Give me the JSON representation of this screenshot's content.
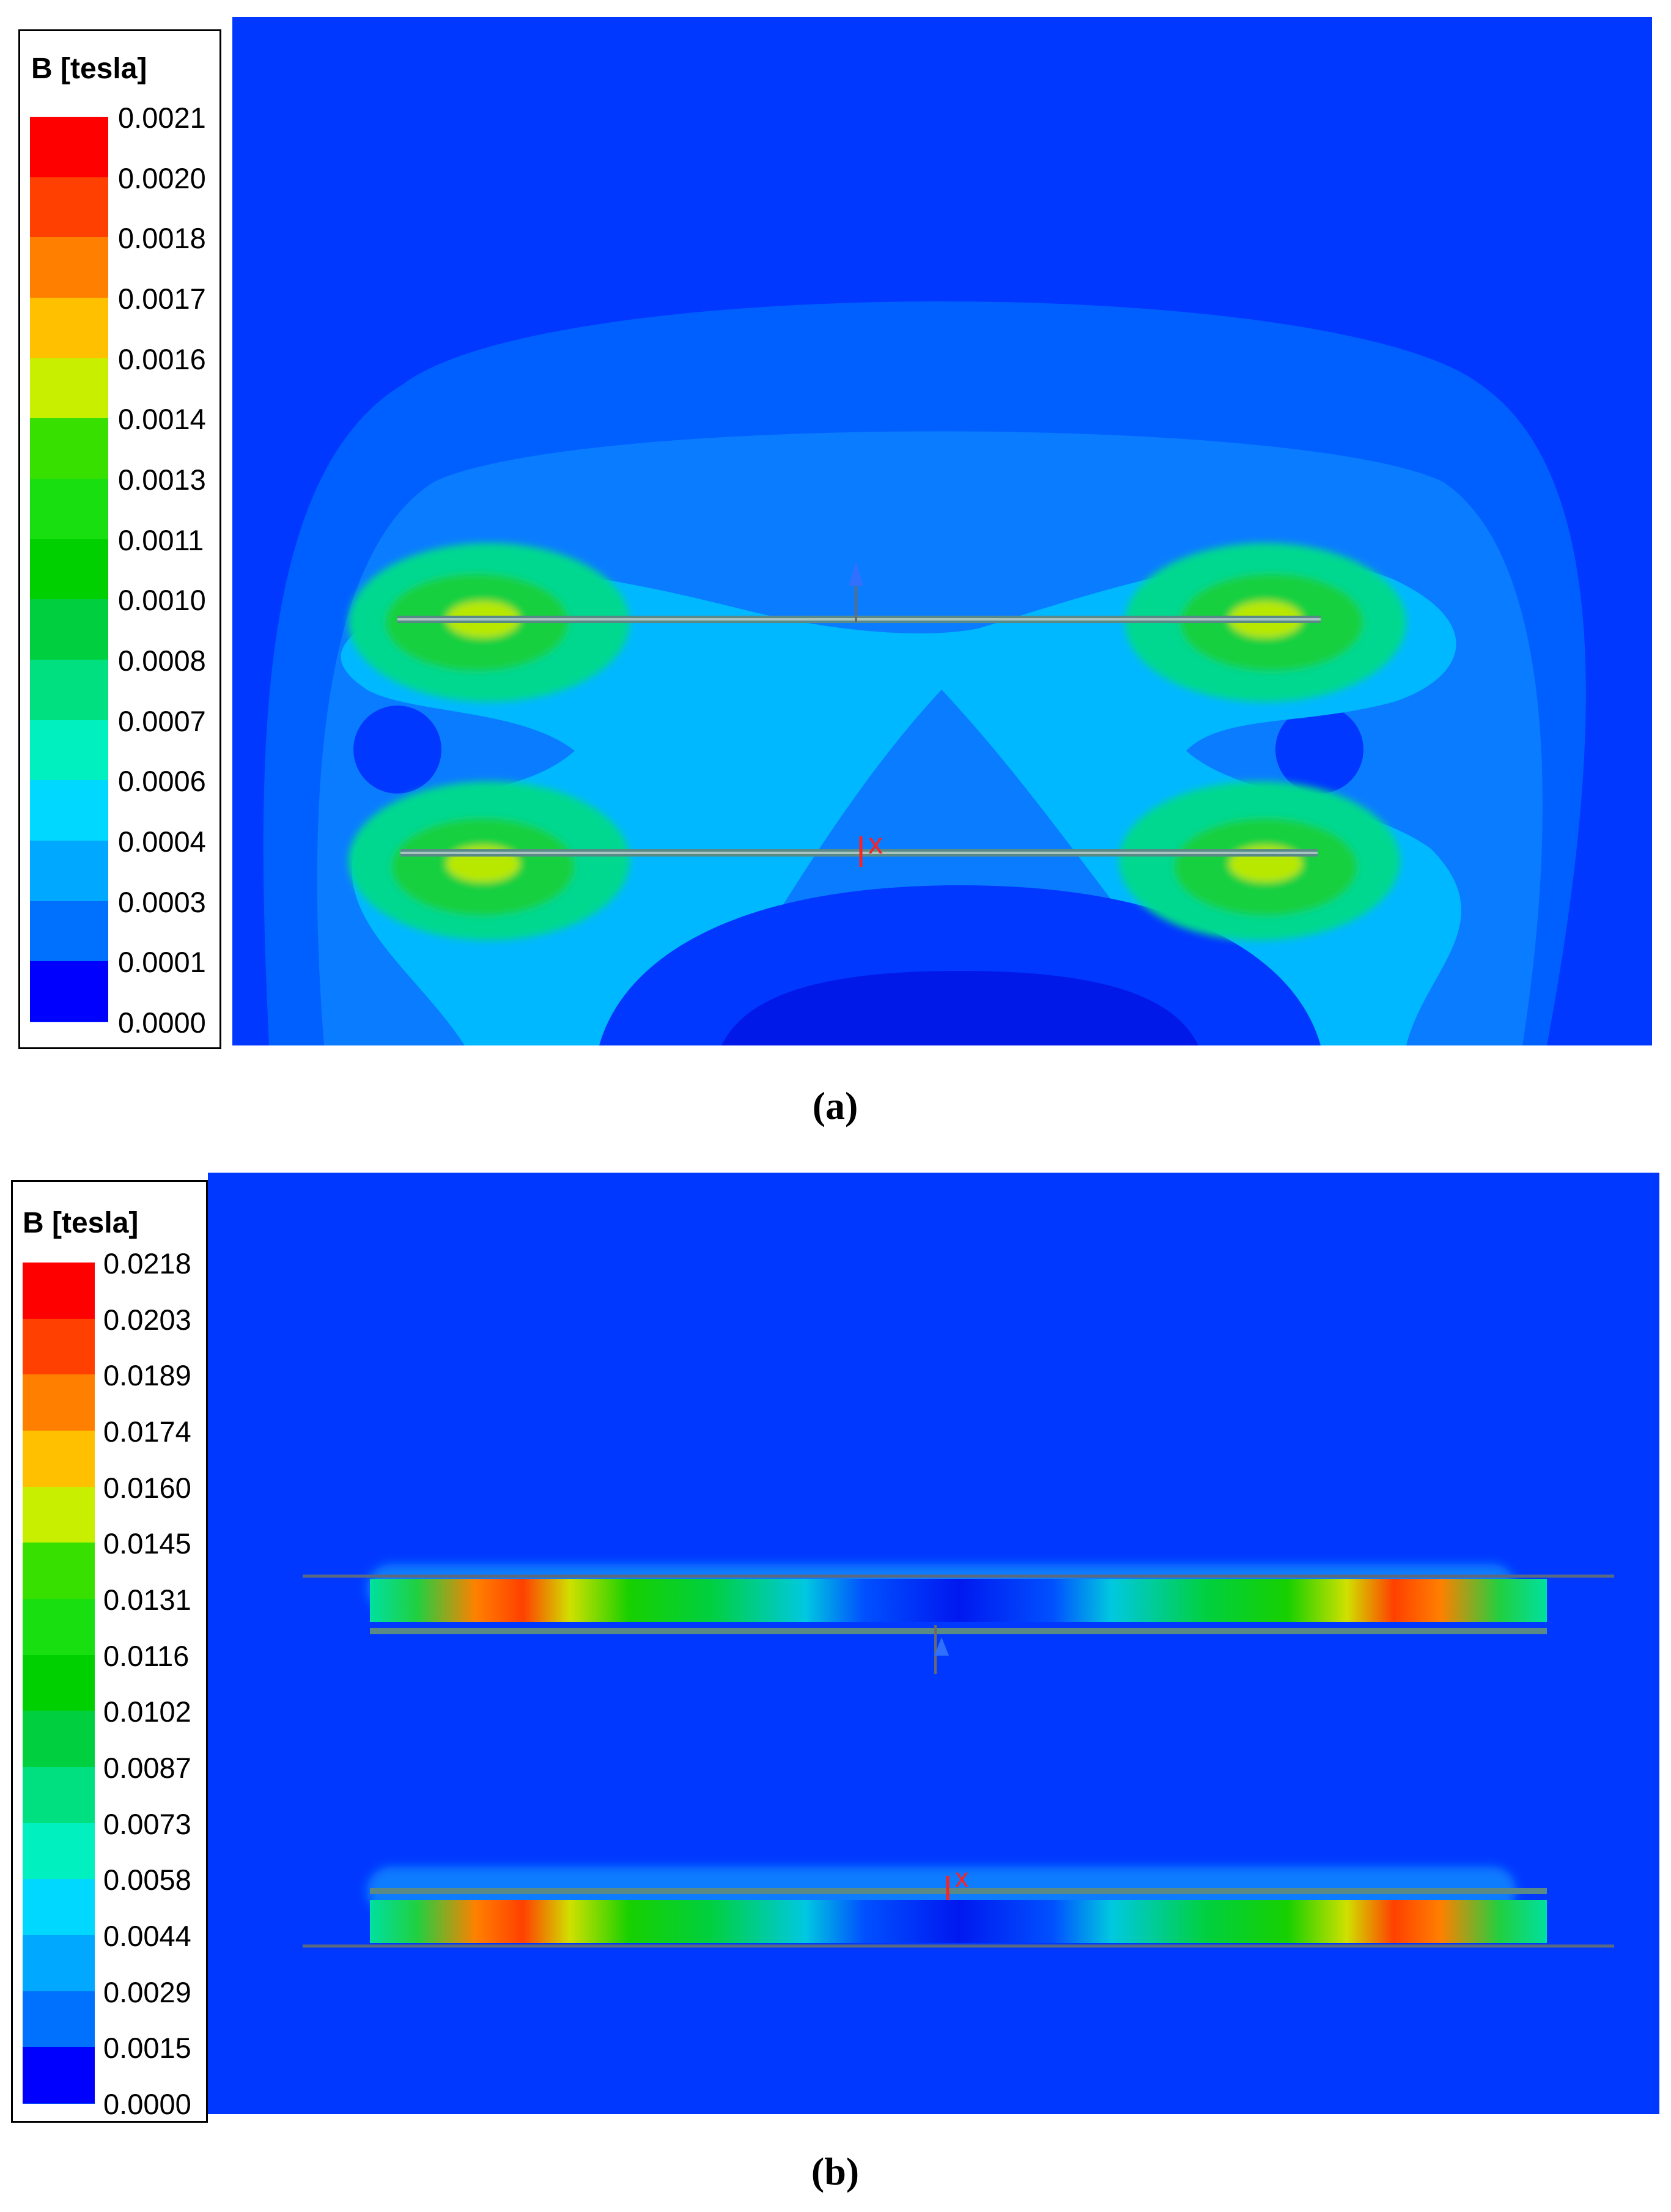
{
  "panels": [
    {
      "caption": "(a)",
      "legend_title": "B [tesla]",
      "scale_labels": [
        "0.0021",
        "0.0020",
        "0.0018",
        "0.0017",
        "0.0016",
        "0.0014",
        "0.0013",
        "0.0011",
        "0.0010",
        "0.0008",
        "0.0007",
        "0.0006",
        "0.0004",
        "0.0003",
        "0.0001",
        "0.0000"
      ],
      "scale_colors": [
        "#ff0000",
        "#ff4000",
        "#ff8000",
        "#ffc000",
        "#c8ef00",
        "#38e000",
        "#18e010",
        "#00d000",
        "#00d040",
        "#00e080",
        "#00f0c0",
        "#00d8ff",
        "#00a8ff",
        "#0070ff",
        "#0038ff",
        "#0000ff"
      ],
      "field_plot": "magnetic-flux-density-field"
    },
    {
      "caption": "(b)",
      "legend_title": "B [tesla]",
      "scale_labels": [
        "0.0218",
        "0.0203",
        "0.0189",
        "0.0174",
        "0.0160",
        "0.0145",
        "0.0131",
        "0.0116",
        "0.0102",
        "0.0087",
        "0.0073",
        "0.0058",
        "0.0044",
        "0.0029",
        "0.0015",
        "0.0000"
      ],
      "scale_colors": [
        "#ff0000",
        "#ff4000",
        "#ff8000",
        "#ffc000",
        "#c8ef00",
        "#38e000",
        "#18e010",
        "#00d000",
        "#00d040",
        "#00e080",
        "#00f0c0",
        "#00d8ff",
        "#00a8ff",
        "#0070ff",
        "#0038ff",
        "#0000ff"
      ],
      "field_plot": "magnetic-flux-density-field"
    }
  ]
}
